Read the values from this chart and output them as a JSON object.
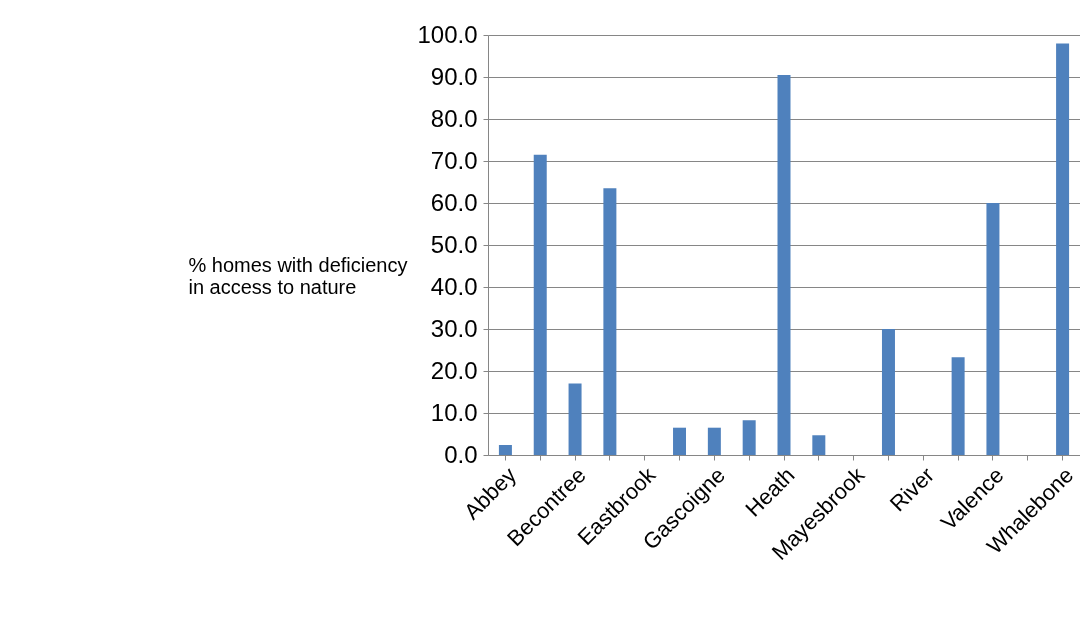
{
  "chart_data": {
    "type": "bar",
    "ylabel": "% homes with deficiency in access to nature",
    "categories": [
      "Abbey",
      null,
      "Becontree",
      null,
      "Eastbrook",
      null,
      "Gascoigne",
      null,
      "Heath",
      null,
      "Mayesbrook",
      null,
      "River",
      null,
      "Valence",
      null,
      "Whalebone"
    ],
    "values": [
      2.4,
      71.5,
      17.0,
      63.5,
      0,
      6.5,
      6.5,
      8.3,
      90.5,
      4.7,
      0,
      30.0,
      0,
      23.3,
      60.0,
      0,
      98.0
    ],
    "color": "#4f81bd",
    "ylim": [
      0,
      100
    ],
    "yticks": [
      {
        "value": 0,
        "label": "0.0"
      },
      {
        "value": 10,
        "label": "10.0"
      },
      {
        "value": 20,
        "label": "20.0"
      },
      {
        "value": 30,
        "label": "30.0"
      },
      {
        "value": 40,
        "label": "40.0"
      },
      {
        "value": 50,
        "label": "50.0"
      },
      {
        "value": 60,
        "label": "60.0"
      },
      {
        "value": 70,
        "label": "70.0"
      },
      {
        "value": 80,
        "label": "80.0"
      },
      {
        "value": 90,
        "label": "90.0"
      },
      {
        "value": 100,
        "label": "100.0"
      }
    ],
    "grid": "y"
  }
}
